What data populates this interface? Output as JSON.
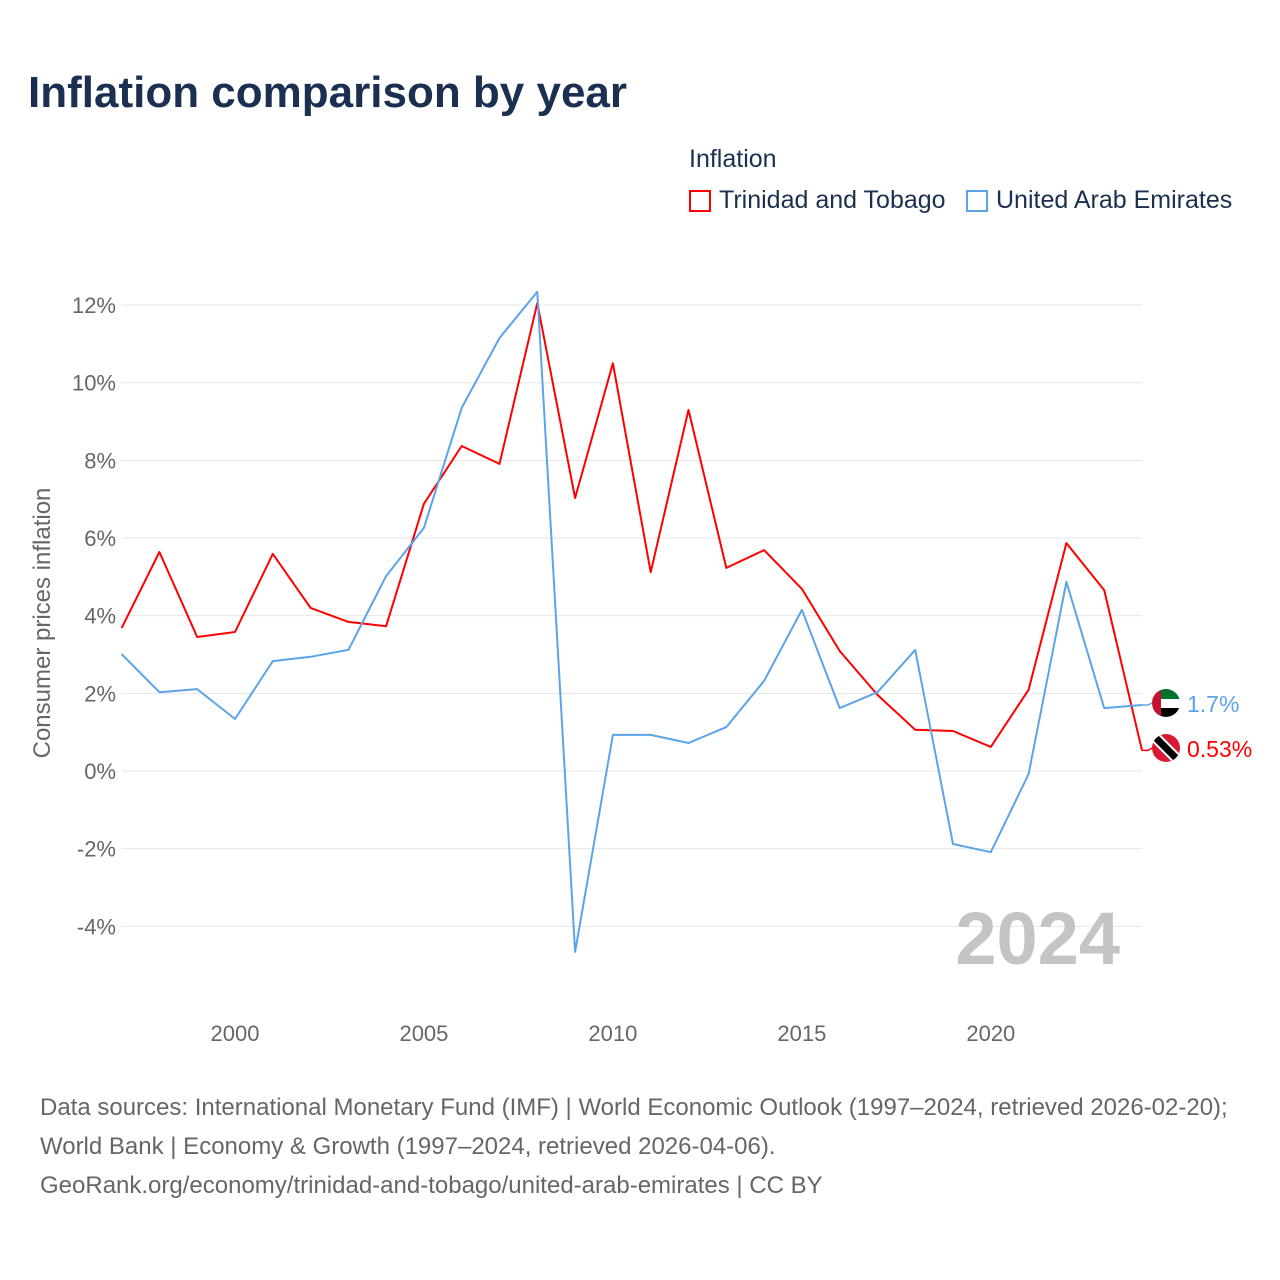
{
  "title": "Inflation comparison by year",
  "footer": {
    "sources": "Data sources: International Monetary Fund (IMF) | World Economic Outlook (1997–2024, retrieved 2026-02-20); World Bank | Economy & Growth (1997–2024, retrieved 2026-04-06).",
    "attribution": "GeoRank.org/economy/trinidad-and-tobago/united-arab-emirates | CC BY"
  },
  "chart_data": {
    "type": "line",
    "title": "Inflation comparison by year",
    "ylabel": "Consumer prices inflation",
    "xlabel": "",
    "legend_title": "Inflation",
    "legend_position": "top-right",
    "watermark_year": "2024",
    "x": [
      1997,
      1998,
      1999,
      2000,
      2001,
      2002,
      2003,
      2004,
      2005,
      2006,
      2007,
      2008,
      2009,
      2010,
      2011,
      2012,
      2013,
      2014,
      2015,
      2016,
      2017,
      2018,
      2019,
      2020,
      2021,
      2022,
      2023,
      2024
    ],
    "xlim": [
      1997,
      2024
    ],
    "ylim": [
      -5,
      12.5
    ],
    "x_ticks": [
      2000,
      2005,
      2010,
      2015,
      2020
    ],
    "y_ticks": [
      -4,
      -2,
      0,
      2,
      4,
      6,
      8,
      10,
      12
    ],
    "y_tick_labels": [
      "-4%",
      "-2%",
      "0%",
      "2%",
      "4%",
      "6%",
      "8%",
      "10%",
      "12%"
    ],
    "grid": true,
    "series": [
      {
        "name": "Trinidad and Tobago",
        "color": "#ff0000",
        "end_label": "0.53%",
        "values": [
          3.68,
          5.64,
          3.45,
          3.58,
          5.59,
          4.2,
          3.84,
          3.73,
          6.88,
          8.37,
          7.91,
          12.05,
          7.03,
          10.5,
          5.12,
          9.3,
          5.23,
          5.69,
          4.69,
          3.09,
          1.96,
          1.06,
          1.03,
          0.62,
          2.09,
          5.87,
          4.66,
          0.53
        ]
      },
      {
        "name": "United Arab Emirates",
        "color": "#5ba4ea",
        "end_label": "1.7%",
        "values": [
          3.01,
          2.03,
          2.11,
          1.34,
          2.83,
          2.94,
          3.12,
          5.02,
          6.26,
          9.35,
          11.15,
          12.34,
          -4.66,
          0.93,
          0.93,
          0.72,
          1.13,
          2.32,
          4.15,
          1.62,
          2.03,
          3.12,
          -1.88,
          -2.09,
          -0.08,
          4.87,
          1.62,
          1.7
        ]
      }
    ]
  }
}
